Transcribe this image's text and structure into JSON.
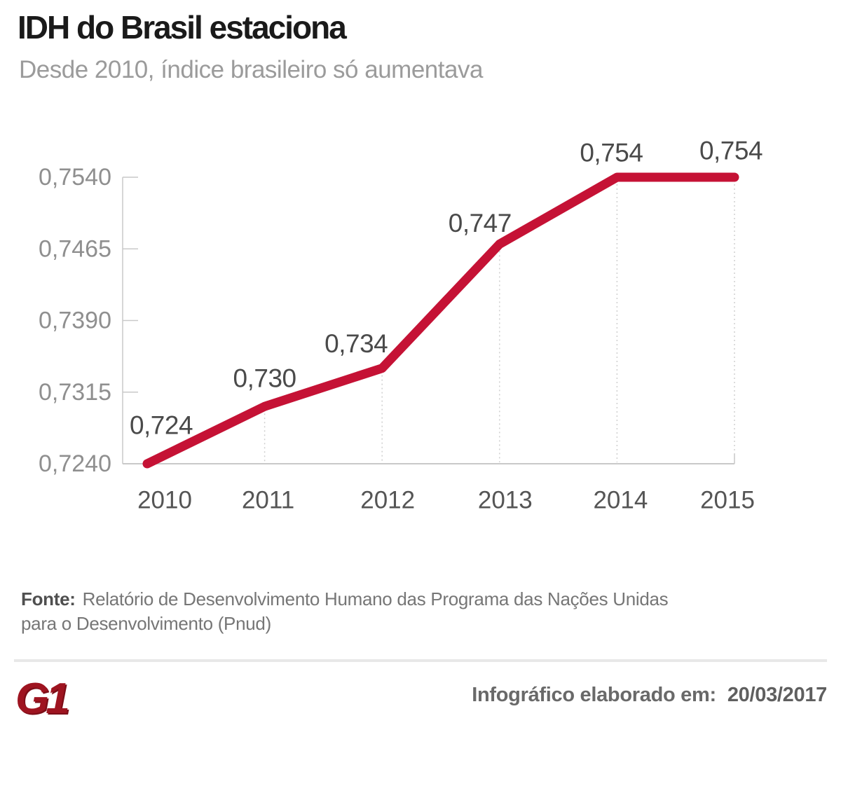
{
  "header": {
    "title": "IDH do Brasil estaciona",
    "subtitle": "Desde 2010, índice brasileiro só aumentava"
  },
  "chart_data": {
    "type": "line",
    "title": "IDH do Brasil estaciona",
    "xlabel": "",
    "ylabel": "",
    "x": [
      2010,
      2011,
      2012,
      2013,
      2014,
      2015
    ],
    "values": [
      0.724,
      0.73,
      0.734,
      0.747,
      0.754,
      0.754
    ],
    "point_labels": [
      "0,724",
      "0,730",
      "0,734",
      "0,747",
      "0,754",
      "0,754"
    ],
    "x_tick_labels": [
      "2010",
      "2011",
      "2012",
      "2013",
      "2014",
      "2015"
    ],
    "y_ticks": [
      0.724,
      0.7315,
      0.739,
      0.7465,
      0.754
    ],
    "y_tick_labels": [
      "0,7240",
      "0,7315",
      "0,7390",
      "0,7465",
      "0,7540"
    ],
    "ylim": [
      0.724,
      0.754
    ],
    "legend": "none",
    "grid": "dotted vertical drop lines from data points to x-axis",
    "line_color": "#c51235"
  },
  "source": {
    "label": "Fonte:",
    "text": "Relatório de Desenvolvimento Humano das Programa das Nações Unidas para o Desenvolvimento (Pnud)"
  },
  "footer": {
    "logo_text": "G1",
    "caption_label": "Infográfico elaborado em:",
    "caption_date": "20/03/2017"
  },
  "colors": {
    "accent_red": "#c51235",
    "logo_red": "#9e1420",
    "title_text": "#1a1a1a",
    "subtitle_text": "#9b9b9b",
    "axis_line": "#c9c9c9",
    "drop_line": "#cfcfcf",
    "y_tick_text": "#8f8f8f",
    "x_tick_text": "#555555",
    "point_label_text": "#4a4a4a",
    "divider": "#e8e8e8",
    "source_text": "#767676"
  }
}
